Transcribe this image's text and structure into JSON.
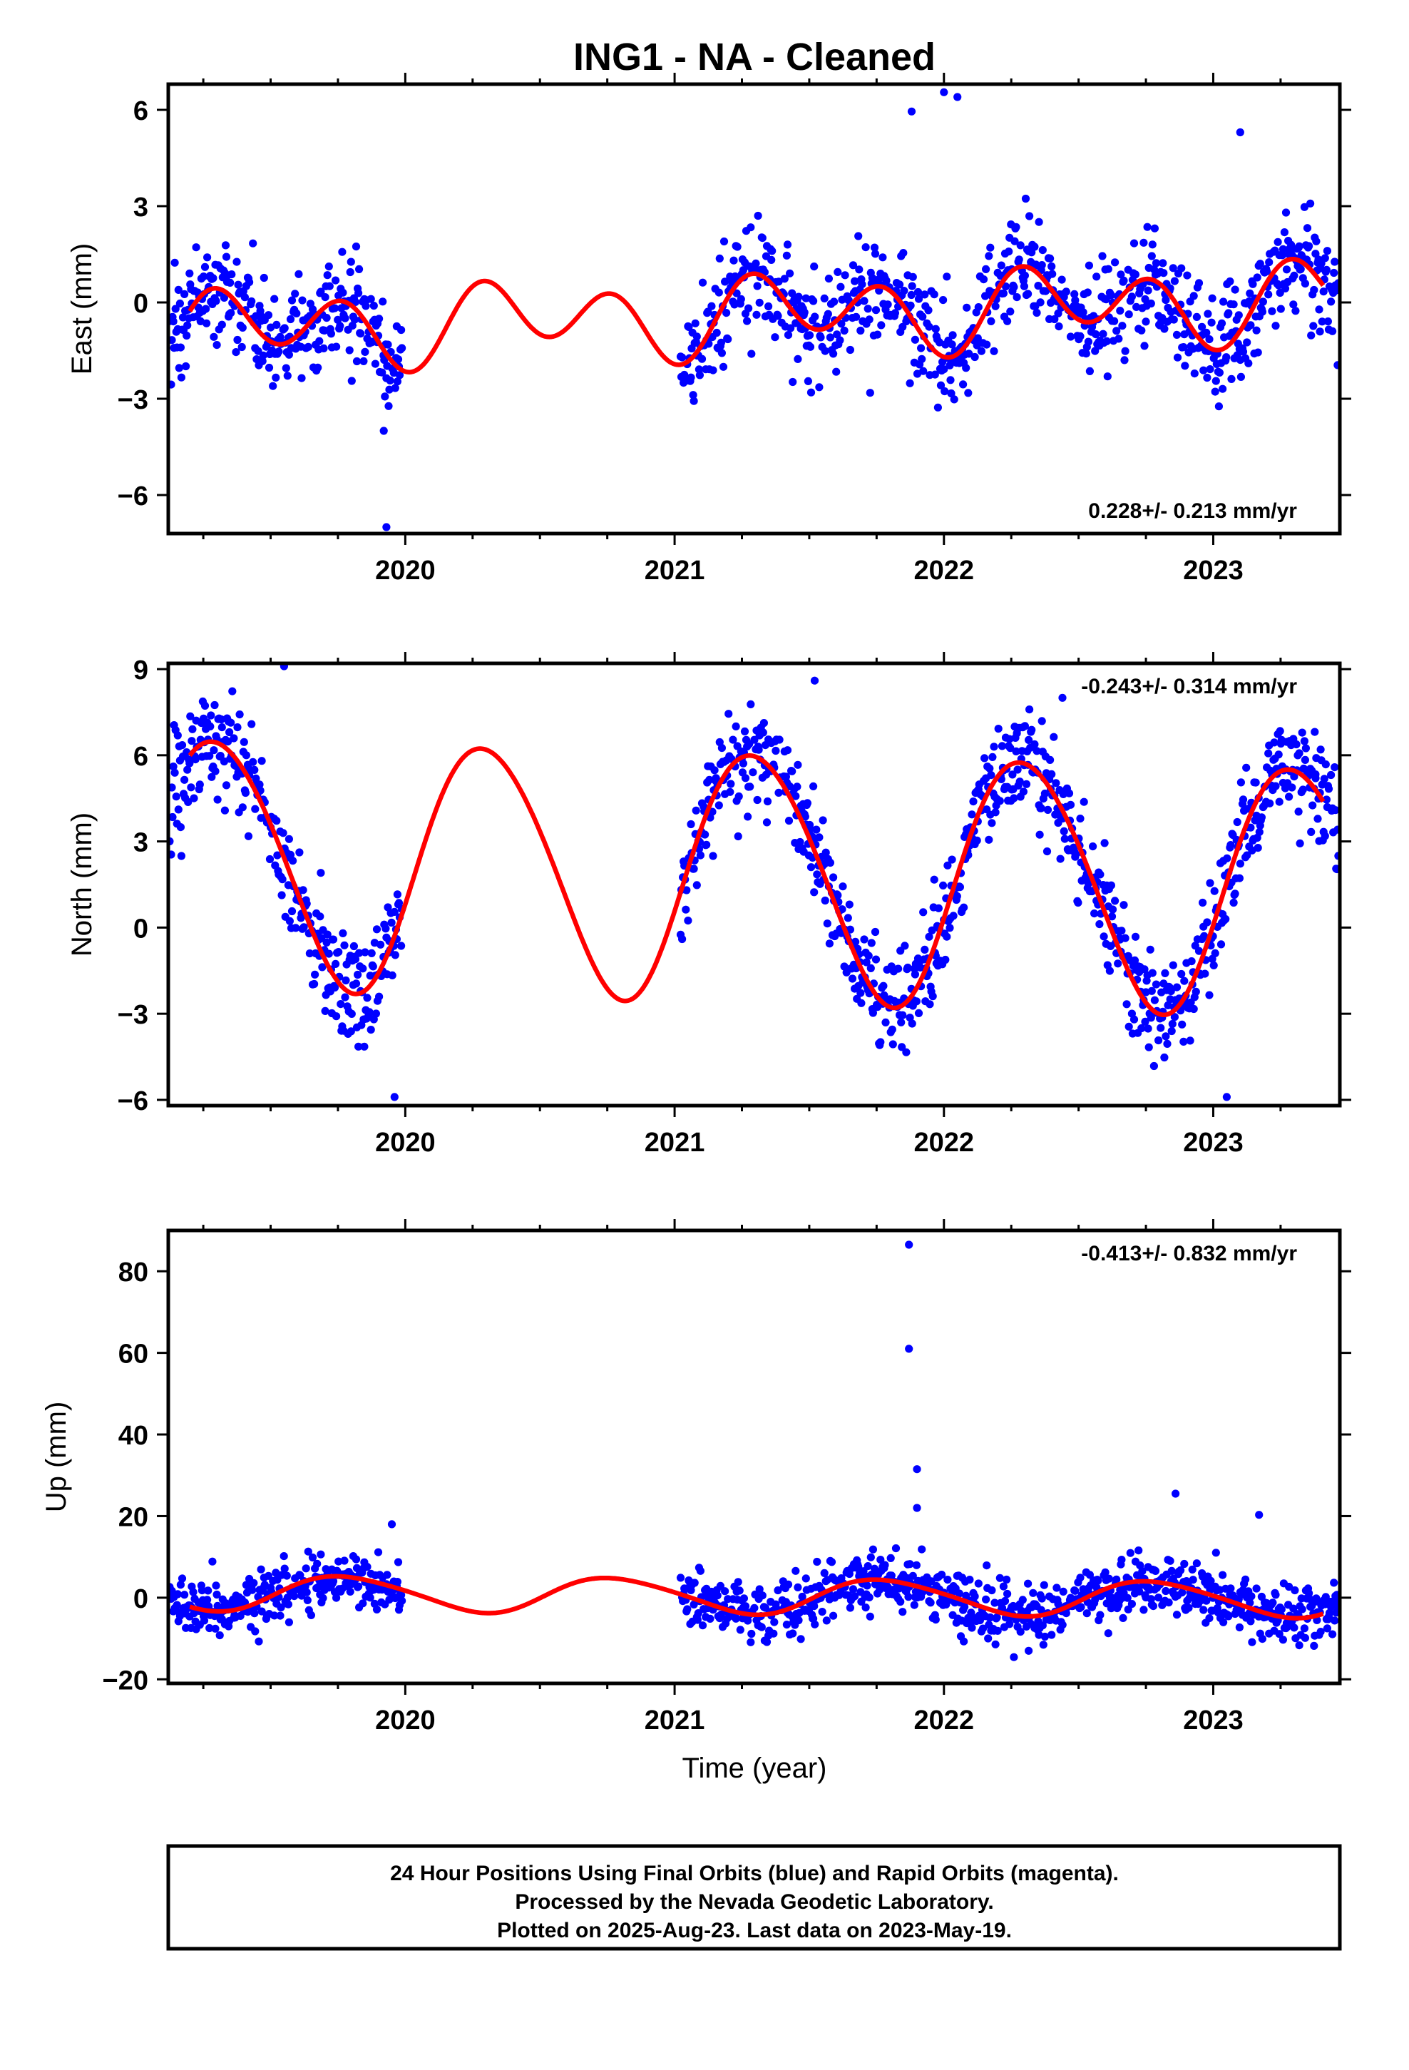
{
  "chart_title": "ING1  - NA - Cleaned",
  "xlabel": "Time (year)",
  "footer": {
    "line1": "24 Hour Positions Using Final Orbits (blue) and Rapid Orbits (magenta).",
    "line2": "Processed by the Nevada Geodetic Laboratory.",
    "line3": "Plotted on 2025-Aug-23. Last data on 2023-May-19."
  },
  "colors": {
    "points": "#0000ff",
    "fit": "#ff0000",
    "frame": "#000000"
  },
  "chart_data": [
    {
      "type": "scatter",
      "name": "east",
      "ylabel": "East (mm)",
      "rate_label": "0.228+/- 0.213 mm/yr",
      "rate_position": "bottom-right",
      "xlim": [
        2019.12,
        2023.47
      ],
      "ylim": [
        -7.2,
        6.8
      ],
      "xticks": [
        2020,
        2021,
        2022,
        2023
      ],
      "xtick_labels": [
        "2020",
        "2021",
        "2022",
        "2023"
      ],
      "yticks": [
        -6,
        -3,
        0,
        3,
        6
      ],
      "ytick_labels": [
        "−6",
        "−3",
        "0",
        "3",
        "6"
      ],
      "gap": [
        2019.99,
        2021.02
      ],
      "noise_sd": 0.85,
      "model": {
        "offset": -0.45,
        "trend": 0.228,
        "annual_amp": 0.55,
        "annual_phase": 0.2,
        "semi_amp": 1.0,
        "semi_phase": 0.15
      },
      "outliers": [
        [
          2019.93,
          -7.0
        ],
        [
          2019.92,
          -4.0
        ],
        [
          2021.88,
          5.95
        ],
        [
          2022.0,
          6.55
        ],
        [
          2022.05,
          6.4
        ],
        [
          2023.1,
          5.3
        ]
      ],
      "fit_line": "model"
    },
    {
      "type": "scatter",
      "name": "north",
      "ylabel": "North (mm)",
      "rate_label": "-0.243+/- 0.314 mm/yr",
      "rate_position": "top-right",
      "xlim": [
        2019.12,
        2023.47
      ],
      "ylim": [
        -6.2,
        9.2
      ],
      "xticks": [
        2020,
        2021,
        2022,
        2023
      ],
      "xtick_labels": [
        "2020",
        "2021",
        "2022",
        "2023"
      ],
      "yticks": [
        -6,
        -3,
        0,
        3,
        6,
        9
      ],
      "ytick_labels": [
        "−6",
        "−3",
        "0",
        "3",
        "6",
        "9"
      ],
      "gap": [
        2019.99,
        2021.02
      ],
      "noise_sd": 0.9,
      "model": {
        "offset": 1.9,
        "trend": -0.243,
        "annual_amp": 4.3,
        "annual_phase": 0.05,
        "semi_amp": 0.3,
        "semi_phase": 0.5
      },
      "outliers": [
        [
          2019.55,
          9.1
        ],
        [
          2019.96,
          -5.9
        ],
        [
          2021.52,
          8.6
        ],
        [
          2022.44,
          8.0
        ],
        [
          2023.05,
          -5.9
        ],
        [
          2023.38,
          5.2
        ]
      ],
      "fit_line": "model"
    },
    {
      "type": "scatter",
      "name": "up",
      "ylabel": "Up (mm)",
      "rate_label": "-0.413+/- 0.832 mm/yr",
      "rate_position": "top-right",
      "xlim": [
        2019.12,
        2023.47
      ],
      "ylim": [
        -21,
        90
      ],
      "xticks": [
        2020,
        2021,
        2022,
        2023
      ],
      "xtick_labels": [
        "2020",
        "2021",
        "2022",
        "2023"
      ],
      "yticks": [
        -20,
        0,
        20,
        40,
        60,
        80
      ],
      "ytick_labels": [
        "−20",
        "0",
        "20",
        "40",
        "60",
        "80"
      ],
      "gap": [
        2019.99,
        2021.02
      ],
      "noise_sd": 3.5,
      "model": {
        "offset": 0.5,
        "trend": -0.413,
        "annual_amp": 4.3,
        "annual_phase": 0.53,
        "semi_amp": 0.5,
        "semi_phase": 0.0
      },
      "outliers": [
        [
          2021.87,
          86.5
        ],
        [
          2021.87,
          61.0
        ],
        [
          2021.9,
          31.5
        ],
        [
          2021.9,
          22.0
        ],
        [
          2022.86,
          25.5
        ],
        [
          2023.17,
          20.3
        ],
        [
          2019.95,
          18.0
        ]
      ],
      "fit_line": "model"
    }
  ]
}
